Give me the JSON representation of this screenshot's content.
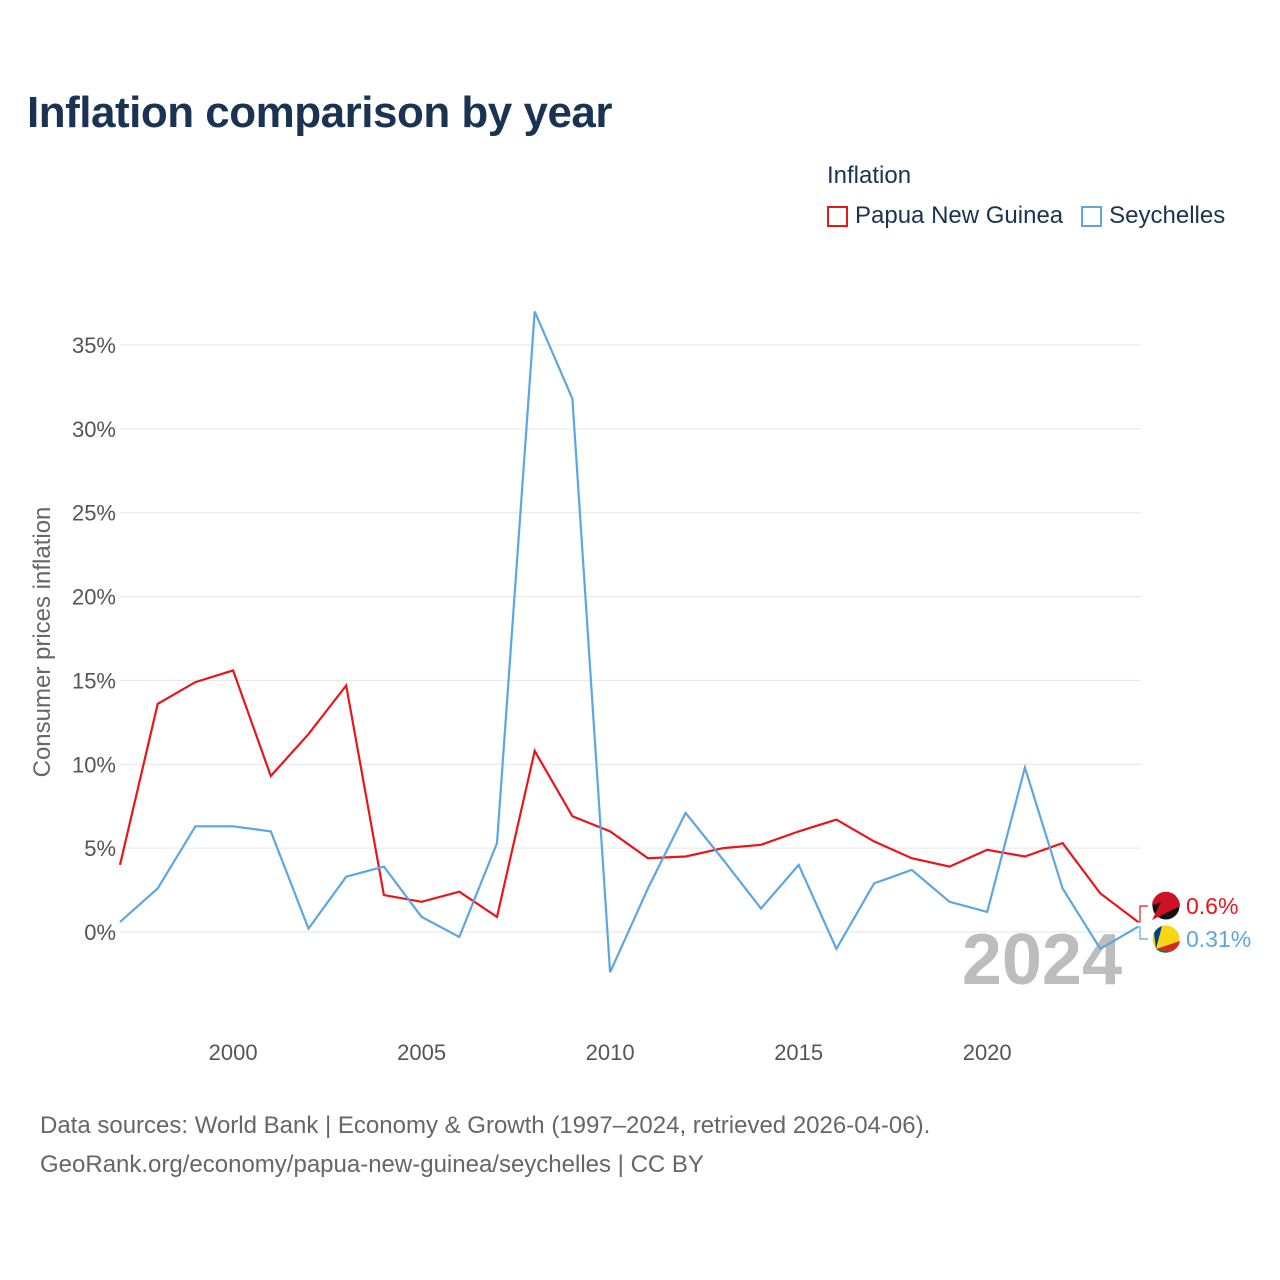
{
  "title": "Inflation comparison by year",
  "legend": {
    "title": "Inflation",
    "items": [
      {
        "name": "Papua New Guinea",
        "color": "#e8161b"
      },
      {
        "name": "Seychelles",
        "color": "#5ca6e2"
      }
    ]
  },
  "chart_data": {
    "type": "line",
    "ylabel": "Consumer prices inflation",
    "ylim": [
      -5,
      37
    ],
    "xlim": [
      1997,
      2024
    ],
    "yticks": [
      0,
      5,
      10,
      15,
      20,
      25,
      30,
      35
    ],
    "ytick_labels": [
      "0%",
      "5%",
      "10%",
      "15%",
      "20%",
      "25%",
      "30%",
      "35%"
    ],
    "xticks": [
      2000,
      2005,
      2010,
      2015,
      2020
    ],
    "xtick_labels": [
      "2000",
      "2005",
      "2010",
      "2015",
      "2020"
    ],
    "x": [
      1997,
      1998,
      1999,
      2000,
      2001,
      2002,
      2003,
      2004,
      2005,
      2006,
      2007,
      2008,
      2009,
      2010,
      2011,
      2012,
      2013,
      2014,
      2015,
      2016,
      2017,
      2018,
      2019,
      2020,
      2021,
      2022,
      2023,
      2024
    ],
    "series": [
      {
        "name": "Papua New Guinea",
        "color": "#e8161b",
        "end_label": "0.6%",
        "values": [
          4.0,
          13.6,
          14.9,
          15.6,
          9.3,
          11.8,
          14.7,
          2.2,
          1.8,
          2.4,
          0.9,
          10.8,
          6.9,
          6.0,
          4.4,
          4.5,
          5.0,
          5.2,
          6.0,
          6.7,
          5.4,
          4.4,
          3.9,
          4.9,
          4.5,
          5.3,
          2.3,
          0.6
        ]
      },
      {
        "name": "Seychelles",
        "color": "#5ca6e2",
        "end_label": "0.31%",
        "values": [
          0.6,
          2.6,
          6.3,
          6.3,
          6.0,
          0.2,
          3.3,
          3.9,
          0.9,
          -0.3,
          5.3,
          37.0,
          31.8,
          -2.4,
          2.6,
          7.1,
          4.3,
          1.4,
          4.0,
          -1.0,
          2.9,
          3.7,
          1.8,
          1.2,
          9.8,
          2.6,
          -1.0,
          0.31
        ]
      }
    ],
    "current_year_label": "2024"
  },
  "footer": {
    "line1": "Data sources: World Bank | Economy & Growth (1997–2024, retrieved 2026-04-06).",
    "line2": "GeoRank.org/economy/papua-new-guinea/seychelles | CC BY"
  }
}
